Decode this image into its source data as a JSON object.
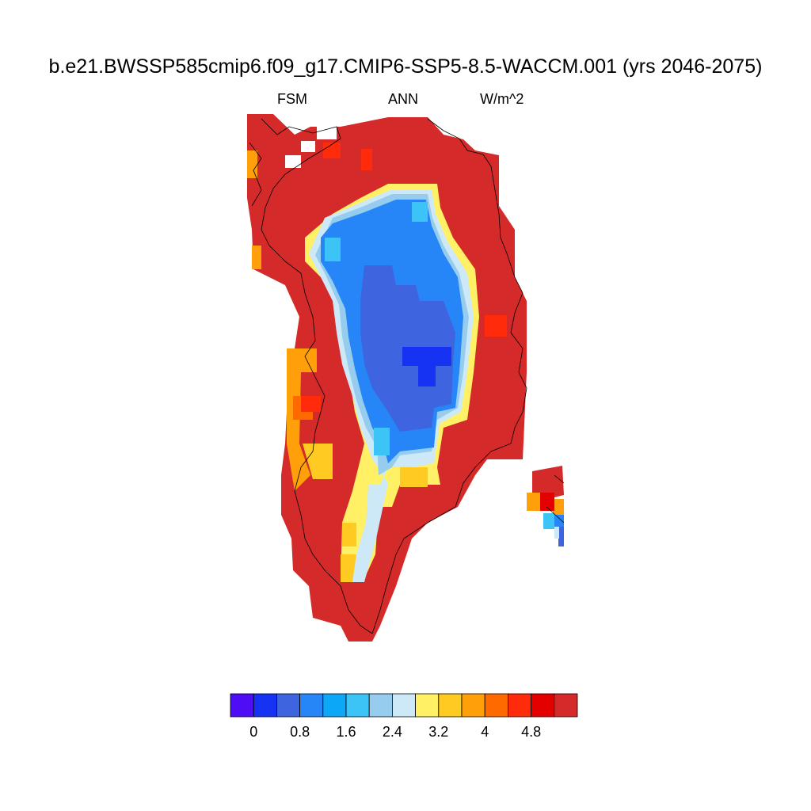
{
  "title": "b.e21.BWSSP585cmip6.f09_g17.CMIP6-SSP5-8.5-WACCM.001 (yrs 2046-2075)",
  "subtitle": {
    "left": "FSM",
    "center": "ANN",
    "right": "W/m^2"
  },
  "colorbar": {
    "colors": [
      "#4e0ef5",
      "#1632f2",
      "#3f64e0",
      "#2686f7",
      "#0ca7f7",
      "#3bc4f5",
      "#96cdee",
      "#cde9f8",
      "#fff066",
      "#ffcb22",
      "#ffa00a",
      "#ff6a00",
      "#ff2b0a",
      "#e50000",
      "#d52a2a"
    ],
    "tick_labels": [
      "0",
      "0.8",
      "1.6",
      "2.4",
      "3.2",
      "4",
      "4.8"
    ]
  },
  "chart_data": {
    "type": "heatmap",
    "variable": "FSM",
    "period": "ANN",
    "units": "W/m^2",
    "levels": [
      0,
      0.4,
      0.8,
      1.2,
      1.6,
      2.0,
      2.4,
      2.8,
      3.2,
      3.6,
      4.0,
      4.4,
      4.8,
      5.2
    ],
    "summary": {
      "coast_and_margin": ">5.2",
      "interior_ice_sheet": "0.8-1.6",
      "central_minimum": "0.4-0.8",
      "transition_ring": "2.4-4.4"
    }
  }
}
